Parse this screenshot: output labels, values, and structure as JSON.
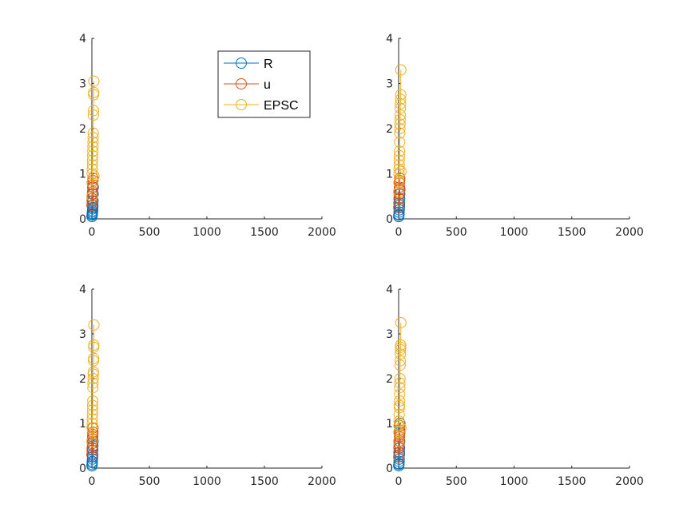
{
  "figure": {
    "background": "#ffffff"
  },
  "chart_data": [
    {
      "type": "line",
      "xlim": [
        0,
        2000
      ],
      "ylim": [
        0,
        4
      ],
      "xticks": [
        "0",
        "500",
        "1000",
        "1500",
        "2000"
      ],
      "yticks": [
        "0",
        "1",
        "2",
        "3",
        "4"
      ],
      "legend": {
        "show": true,
        "placement": "top-right-inside",
        "entries": [
          "R",
          "u",
          "EPSC"
        ]
      },
      "series": [
        {
          "name": "R",
          "color": "#0072BD",
          "marker": "circle",
          "x": [
            1,
            2,
            3,
            4,
            5,
            6,
            7,
            8,
            9,
            10,
            11,
            12
          ],
          "y": [
            0.05,
            0.08,
            0.1,
            0.12,
            0.15,
            0.18,
            0.22,
            0.25,
            0.3,
            0.4,
            0.55,
            0.7
          ]
        },
        {
          "name": "u",
          "color": "#D95319",
          "marker": "circle",
          "x": [
            1,
            2,
            3,
            4,
            5,
            6,
            7,
            8,
            9,
            10
          ],
          "y": [
            0.3,
            0.4,
            0.45,
            0.5,
            0.55,
            0.6,
            0.7,
            0.75,
            0.85,
            0.9
          ]
        },
        {
          "name": "EPSC",
          "color": "#EDB120",
          "marker": "circle",
          "x": [
            1,
            2,
            3,
            4,
            5,
            6,
            7,
            8,
            9,
            10,
            11,
            12,
            13,
            14,
            15,
            16,
            17,
            18
          ],
          "y": [
            0.5,
            0.8,
            1.0,
            1.1,
            1.2,
            1.3,
            1.4,
            1.5,
            1.6,
            1.7,
            1.8,
            1.9,
            2.3,
            2.4,
            2.75,
            2.8,
            3.05,
            0.95
          ]
        }
      ]
    },
    {
      "type": "line",
      "xlim": [
        0,
        2000
      ],
      "ylim": [
        0,
        4
      ],
      "xticks": [
        "0",
        "500",
        "1000",
        "1500",
        "2000"
      ],
      "yticks": [
        "0",
        "1",
        "2",
        "3",
        "4"
      ],
      "legend": {
        "show": false
      },
      "series": [
        {
          "name": "R",
          "color": "#0072BD",
          "marker": "circle",
          "x": [
            1,
            2,
            3,
            4,
            5,
            6,
            7,
            8,
            9,
            10,
            11
          ],
          "y": [
            0.05,
            0.08,
            0.1,
            0.15,
            0.2,
            0.25,
            0.3,
            0.35,
            0.45,
            0.55,
            0.65
          ]
        },
        {
          "name": "u",
          "color": "#D95319",
          "marker": "circle",
          "x": [
            1,
            2,
            3,
            4,
            5,
            6,
            7,
            8,
            9,
            10
          ],
          "y": [
            0.25,
            0.35,
            0.45,
            0.55,
            0.6,
            0.65,
            0.7,
            0.8,
            0.85,
            0.9
          ]
        },
        {
          "name": "EPSC",
          "color": "#EDB120",
          "marker": "circle",
          "x": [
            1,
            2,
            3,
            4,
            5,
            6,
            7,
            8,
            9,
            10,
            11,
            12,
            13,
            14,
            15,
            16,
            17,
            18,
            19,
            20
          ],
          "y": [
            0.6,
            0.8,
            1.0,
            1.1,
            1.2,
            1.3,
            1.4,
            1.5,
            1.7,
            1.9,
            2.0,
            2.1,
            2.2,
            2.3,
            2.45,
            2.55,
            2.65,
            2.75,
            3.3,
            1.05
          ]
        }
      ]
    },
    {
      "type": "line",
      "xlim": [
        0,
        2000
      ],
      "ylim": [
        0,
        4
      ],
      "xticks": [
        "0",
        "500",
        "1000",
        "1500",
        "2000"
      ],
      "yticks": [
        "0",
        "1",
        "2",
        "3",
        "4"
      ],
      "legend": {
        "show": false
      },
      "series": [
        {
          "name": "R",
          "color": "#0072BD",
          "marker": "circle",
          "x": [
            1,
            2,
            3,
            4,
            5,
            6,
            7,
            8,
            9,
            10
          ],
          "y": [
            0.05,
            0.08,
            0.12,
            0.15,
            0.2,
            0.25,
            0.3,
            0.4,
            0.5,
            0.6
          ]
        },
        {
          "name": "u",
          "color": "#D95319",
          "marker": "circle",
          "x": [
            1,
            2,
            3,
            4,
            5,
            6,
            7,
            8,
            9,
            10
          ],
          "y": [
            0.3,
            0.4,
            0.45,
            0.55,
            0.6,
            0.65,
            0.7,
            0.75,
            0.8,
            0.9
          ]
        },
        {
          "name": "EPSC",
          "color": "#EDB120",
          "marker": "circle",
          "x": [
            1,
            2,
            3,
            4,
            5,
            6,
            7,
            8,
            9,
            10,
            11,
            12,
            13,
            14,
            15,
            16,
            17,
            18
          ],
          "y": [
            0.6,
            0.9,
            1.0,
            1.1,
            1.2,
            1.3,
            1.4,
            1.5,
            1.8,
            1.9,
            2.0,
            2.1,
            2.15,
            2.4,
            2.45,
            2.7,
            2.75,
            3.2
          ]
        }
      ]
    },
    {
      "type": "line",
      "xlim": [
        0,
        2000
      ],
      "ylim": [
        0,
        4
      ],
      "xticks": [
        "0",
        "500",
        "1000",
        "1500",
        "2000"
      ],
      "yticks": [
        "0",
        "1",
        "2",
        "3",
        "4"
      ],
      "legend": {
        "show": false
      },
      "series": [
        {
          "name": "R",
          "color": "#0072BD",
          "marker": "circle",
          "x": [
            1,
            2,
            3,
            4,
            5,
            6,
            7,
            8,
            9,
            10,
            11
          ],
          "y": [
            0.05,
            0.08,
            0.1,
            0.15,
            0.2,
            0.3,
            0.35,
            0.45,
            0.6,
            0.8,
            1.0
          ]
        },
        {
          "name": "u",
          "color": "#D95319",
          "marker": "circle",
          "x": [
            1,
            2,
            3,
            4,
            5,
            6,
            7,
            8,
            9,
            10
          ],
          "y": [
            0.25,
            0.35,
            0.45,
            0.5,
            0.55,
            0.6,
            0.7,
            0.75,
            0.85,
            0.95
          ]
        },
        {
          "name": "EPSC",
          "color": "#EDB120",
          "marker": "circle",
          "x": [
            1,
            2,
            3,
            4,
            5,
            6,
            7,
            8,
            9,
            10,
            11,
            12,
            13,
            14,
            15,
            16,
            17,
            18,
            19,
            20
          ],
          "y": [
            0.6,
            0.8,
            0.95,
            1.05,
            1.2,
            1.35,
            1.4,
            1.5,
            1.65,
            1.8,
            1.9,
            2.0,
            2.3,
            2.4,
            2.55,
            2.65,
            2.7,
            2.75,
            3.25,
            0.9
          ]
        }
      ]
    }
  ]
}
